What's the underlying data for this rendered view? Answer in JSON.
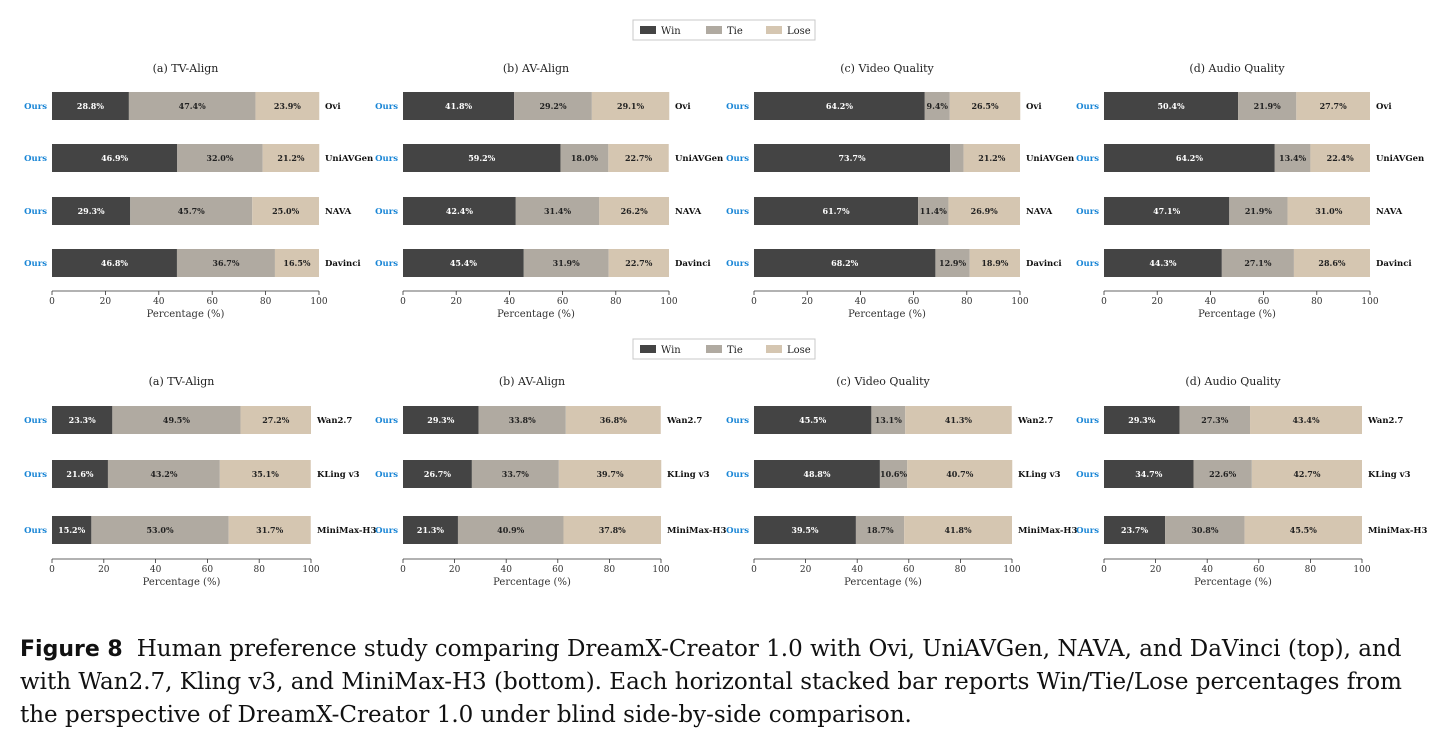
{
  "legend": {
    "items": [
      {
        "label": "Win",
        "color": "#444444"
      },
      {
        "label": "Tie",
        "color": "#b0aaa1"
      },
      {
        "label": "Lose",
        "color": "#d5c6b1"
      }
    ]
  },
  "ours_label": "Ours",
  "xlabel": "Percentage (%)",
  "xticks": [
    "0",
    "20",
    "40",
    "60",
    "80",
    "100"
  ],
  "chart_data": [
    {
      "type": "bar",
      "orientation": "horizontal",
      "stacked": true,
      "title": "(a) TV-Align",
      "categories": [
        "Ovi",
        "UniAVGen",
        "NAVA",
        "Davinci"
      ],
      "series": [
        {
          "name": "Win",
          "values": [
            28.8,
            46.9,
            29.3,
            46.8
          ]
        },
        {
          "name": "Tie",
          "values": [
            47.4,
            32.0,
            45.7,
            36.7
          ]
        },
        {
          "name": "Lose",
          "values": [
            23.9,
            21.2,
            25.0,
            16.5
          ]
        }
      ],
      "labels": [
        [
          "28.8%",
          "47.4%",
          "23.9%"
        ],
        [
          "46.9%",
          "32.0%",
          "21.2%"
        ],
        [
          "29.3%",
          "45.7%",
          "25.0%"
        ],
        [
          "46.8%",
          "36.7%",
          "16.5%"
        ]
      ],
      "xlabel": "Percentage (%)",
      "xlim": [
        0,
        100
      ]
    },
    {
      "type": "bar",
      "orientation": "horizontal",
      "stacked": true,
      "title": "(b) AV-Align",
      "categories": [
        "Ovi",
        "UniAVGen",
        "NAVA",
        "Davinci"
      ],
      "series": [
        {
          "name": "Win",
          "values": [
            41.8,
            59.2,
            42.4,
            45.4
          ]
        },
        {
          "name": "Tie",
          "values": [
            29.2,
            18.0,
            31.4,
            31.9
          ]
        },
        {
          "name": "Lose",
          "values": [
            29.1,
            22.7,
            26.2,
            22.7
          ]
        }
      ],
      "labels": [
        [
          "41.8%",
          "29.2%",
          "29.1%"
        ],
        [
          "59.2%",
          "18.0%",
          "22.7%"
        ],
        [
          "42.4%",
          "31.4%",
          "26.2%"
        ],
        [
          "45.4%",
          "31.9%",
          "22.7%"
        ]
      ],
      "xlabel": "Percentage (%)",
      "xlim": [
        0,
        100
      ]
    },
    {
      "type": "bar",
      "orientation": "horizontal",
      "stacked": true,
      "title": "(c) Video Quality",
      "categories": [
        "Ovi",
        "UniAVGen",
        "NAVA",
        "Davinci"
      ],
      "series": [
        {
          "name": "Win",
          "values": [
            64.2,
            73.7,
            61.7,
            68.2
          ]
        },
        {
          "name": "Tie",
          "values": [
            9.4,
            5.1,
            11.4,
            12.9
          ]
        },
        {
          "name": "Lose",
          "values": [
            26.5,
            21.2,
            26.9,
            18.9
          ]
        }
      ],
      "labels": [
        [
          "64.2%",
          "9.4%",
          "26.5%"
        ],
        [
          "73.7%",
          "",
          "21.2%"
        ],
        [
          "61.7%",
          "11.4%",
          "26.9%"
        ],
        [
          "68.2%",
          "12.9%",
          "18.9%"
        ]
      ],
      "xlabel": "Percentage (%)",
      "xlim": [
        0,
        100
      ]
    },
    {
      "type": "bar",
      "orientation": "horizontal",
      "stacked": true,
      "title": "(d) Audio Quality",
      "categories": [
        "Ovi",
        "UniAVGen",
        "NAVA",
        "Davinci"
      ],
      "series": [
        {
          "name": "Win",
          "values": [
            50.4,
            64.2,
            47.1,
            44.3
          ]
        },
        {
          "name": "Tie",
          "values": [
            21.9,
            13.4,
            21.9,
            27.1
          ]
        },
        {
          "name": "Lose",
          "values": [
            27.7,
            22.4,
            31.0,
            28.6
          ]
        }
      ],
      "labels": [
        [
          "50.4%",
          "21.9%",
          "27.7%"
        ],
        [
          "64.2%",
          "13.4%",
          "22.4%"
        ],
        [
          "47.1%",
          "21.9%",
          "31.0%"
        ],
        [
          "44.3%",
          "27.1%",
          "28.6%"
        ]
      ],
      "xlabel": "Percentage (%)",
      "xlim": [
        0,
        100
      ]
    },
    {
      "type": "bar",
      "orientation": "horizontal",
      "stacked": true,
      "title": "(a) TV-Align",
      "categories": [
        "Wan2.7",
        "KLing v3",
        "MiniMax-H3"
      ],
      "series": [
        {
          "name": "Win",
          "values": [
            23.3,
            21.6,
            15.2
          ]
        },
        {
          "name": "Tie",
          "values": [
            49.5,
            43.2,
            53.0
          ]
        },
        {
          "name": "Lose",
          "values": [
            27.2,
            35.1,
            31.7
          ]
        }
      ],
      "labels": [
        [
          "23.3%",
          "49.5%",
          "27.2%"
        ],
        [
          "21.6%",
          "43.2%",
          "35.1%"
        ],
        [
          "15.2%",
          "53.0%",
          "31.7%"
        ]
      ],
      "xlabel": "Percentage (%)",
      "xlim": [
        0,
        100
      ]
    },
    {
      "type": "bar",
      "orientation": "horizontal",
      "stacked": true,
      "title": "(b) AV-Align",
      "categories": [
        "Wan2.7",
        "KLing v3",
        "MiniMax-H3"
      ],
      "series": [
        {
          "name": "Win",
          "values": [
            29.3,
            26.7,
            21.3
          ]
        },
        {
          "name": "Tie",
          "values": [
            33.8,
            33.7,
            40.9
          ]
        },
        {
          "name": "Lose",
          "values": [
            36.8,
            39.7,
            37.8
          ]
        }
      ],
      "labels": [
        [
          "29.3%",
          "33.8%",
          "36.8%"
        ],
        [
          "26.7%",
          "33.7%",
          "39.7%"
        ],
        [
          "21.3%",
          "40.9%",
          "37.8%"
        ]
      ],
      "xlabel": "Percentage (%)",
      "xlim": [
        0,
        100
      ]
    },
    {
      "type": "bar",
      "orientation": "horizontal",
      "stacked": true,
      "title": "(c) Video Quality",
      "categories": [
        "Wan2.7",
        "KLing v3",
        "MiniMax-H3"
      ],
      "series": [
        {
          "name": "Win",
          "values": [
            45.5,
            48.8,
            39.5
          ]
        },
        {
          "name": "Tie",
          "values": [
            13.1,
            10.6,
            18.7
          ]
        },
        {
          "name": "Lose",
          "values": [
            41.3,
            40.7,
            41.8
          ]
        }
      ],
      "labels": [
        [
          "45.5%",
          "13.1%",
          "41.3%"
        ],
        [
          "48.8%",
          "10.6%",
          "40.7%"
        ],
        [
          "39.5%",
          "18.7%",
          "41.8%"
        ]
      ],
      "xlabel": "Percentage (%)",
      "xlim": [
        0,
        100
      ]
    },
    {
      "type": "bar",
      "orientation": "horizontal",
      "stacked": true,
      "title": "(d) Audio Quality",
      "categories": [
        "Wan2.7",
        "KLing v3",
        "MiniMax-H3"
      ],
      "series": [
        {
          "name": "Win",
          "values": [
            29.3,
            34.7,
            23.7
          ]
        },
        {
          "name": "Tie",
          "values": [
            27.3,
            22.6,
            30.8
          ]
        },
        {
          "name": "Lose",
          "values": [
            43.4,
            42.7,
            45.5
          ]
        }
      ],
      "labels": [
        [
          "29.3%",
          "27.3%",
          "43.4%"
        ],
        [
          "34.7%",
          "22.6%",
          "42.7%"
        ],
        [
          "23.7%",
          "30.8%",
          "45.5%"
        ]
      ],
      "xlabel": "Percentage (%)",
      "xlim": [
        0,
        100
      ]
    }
  ],
  "caption": {
    "label": "Figure 8",
    "text": "Human preference study comparing DreamX-Creator 1.0 with Ovi, UniAVGen, NAVA, and DaVinci (top), and with Wan2.7, Kling v3, and MiniMax-H3 (bottom). Each horizontal stacked bar reports Win/Tie/Lose percentages from the perspective of DreamX-Creator 1.0 under blind side-by-side comparison."
  }
}
